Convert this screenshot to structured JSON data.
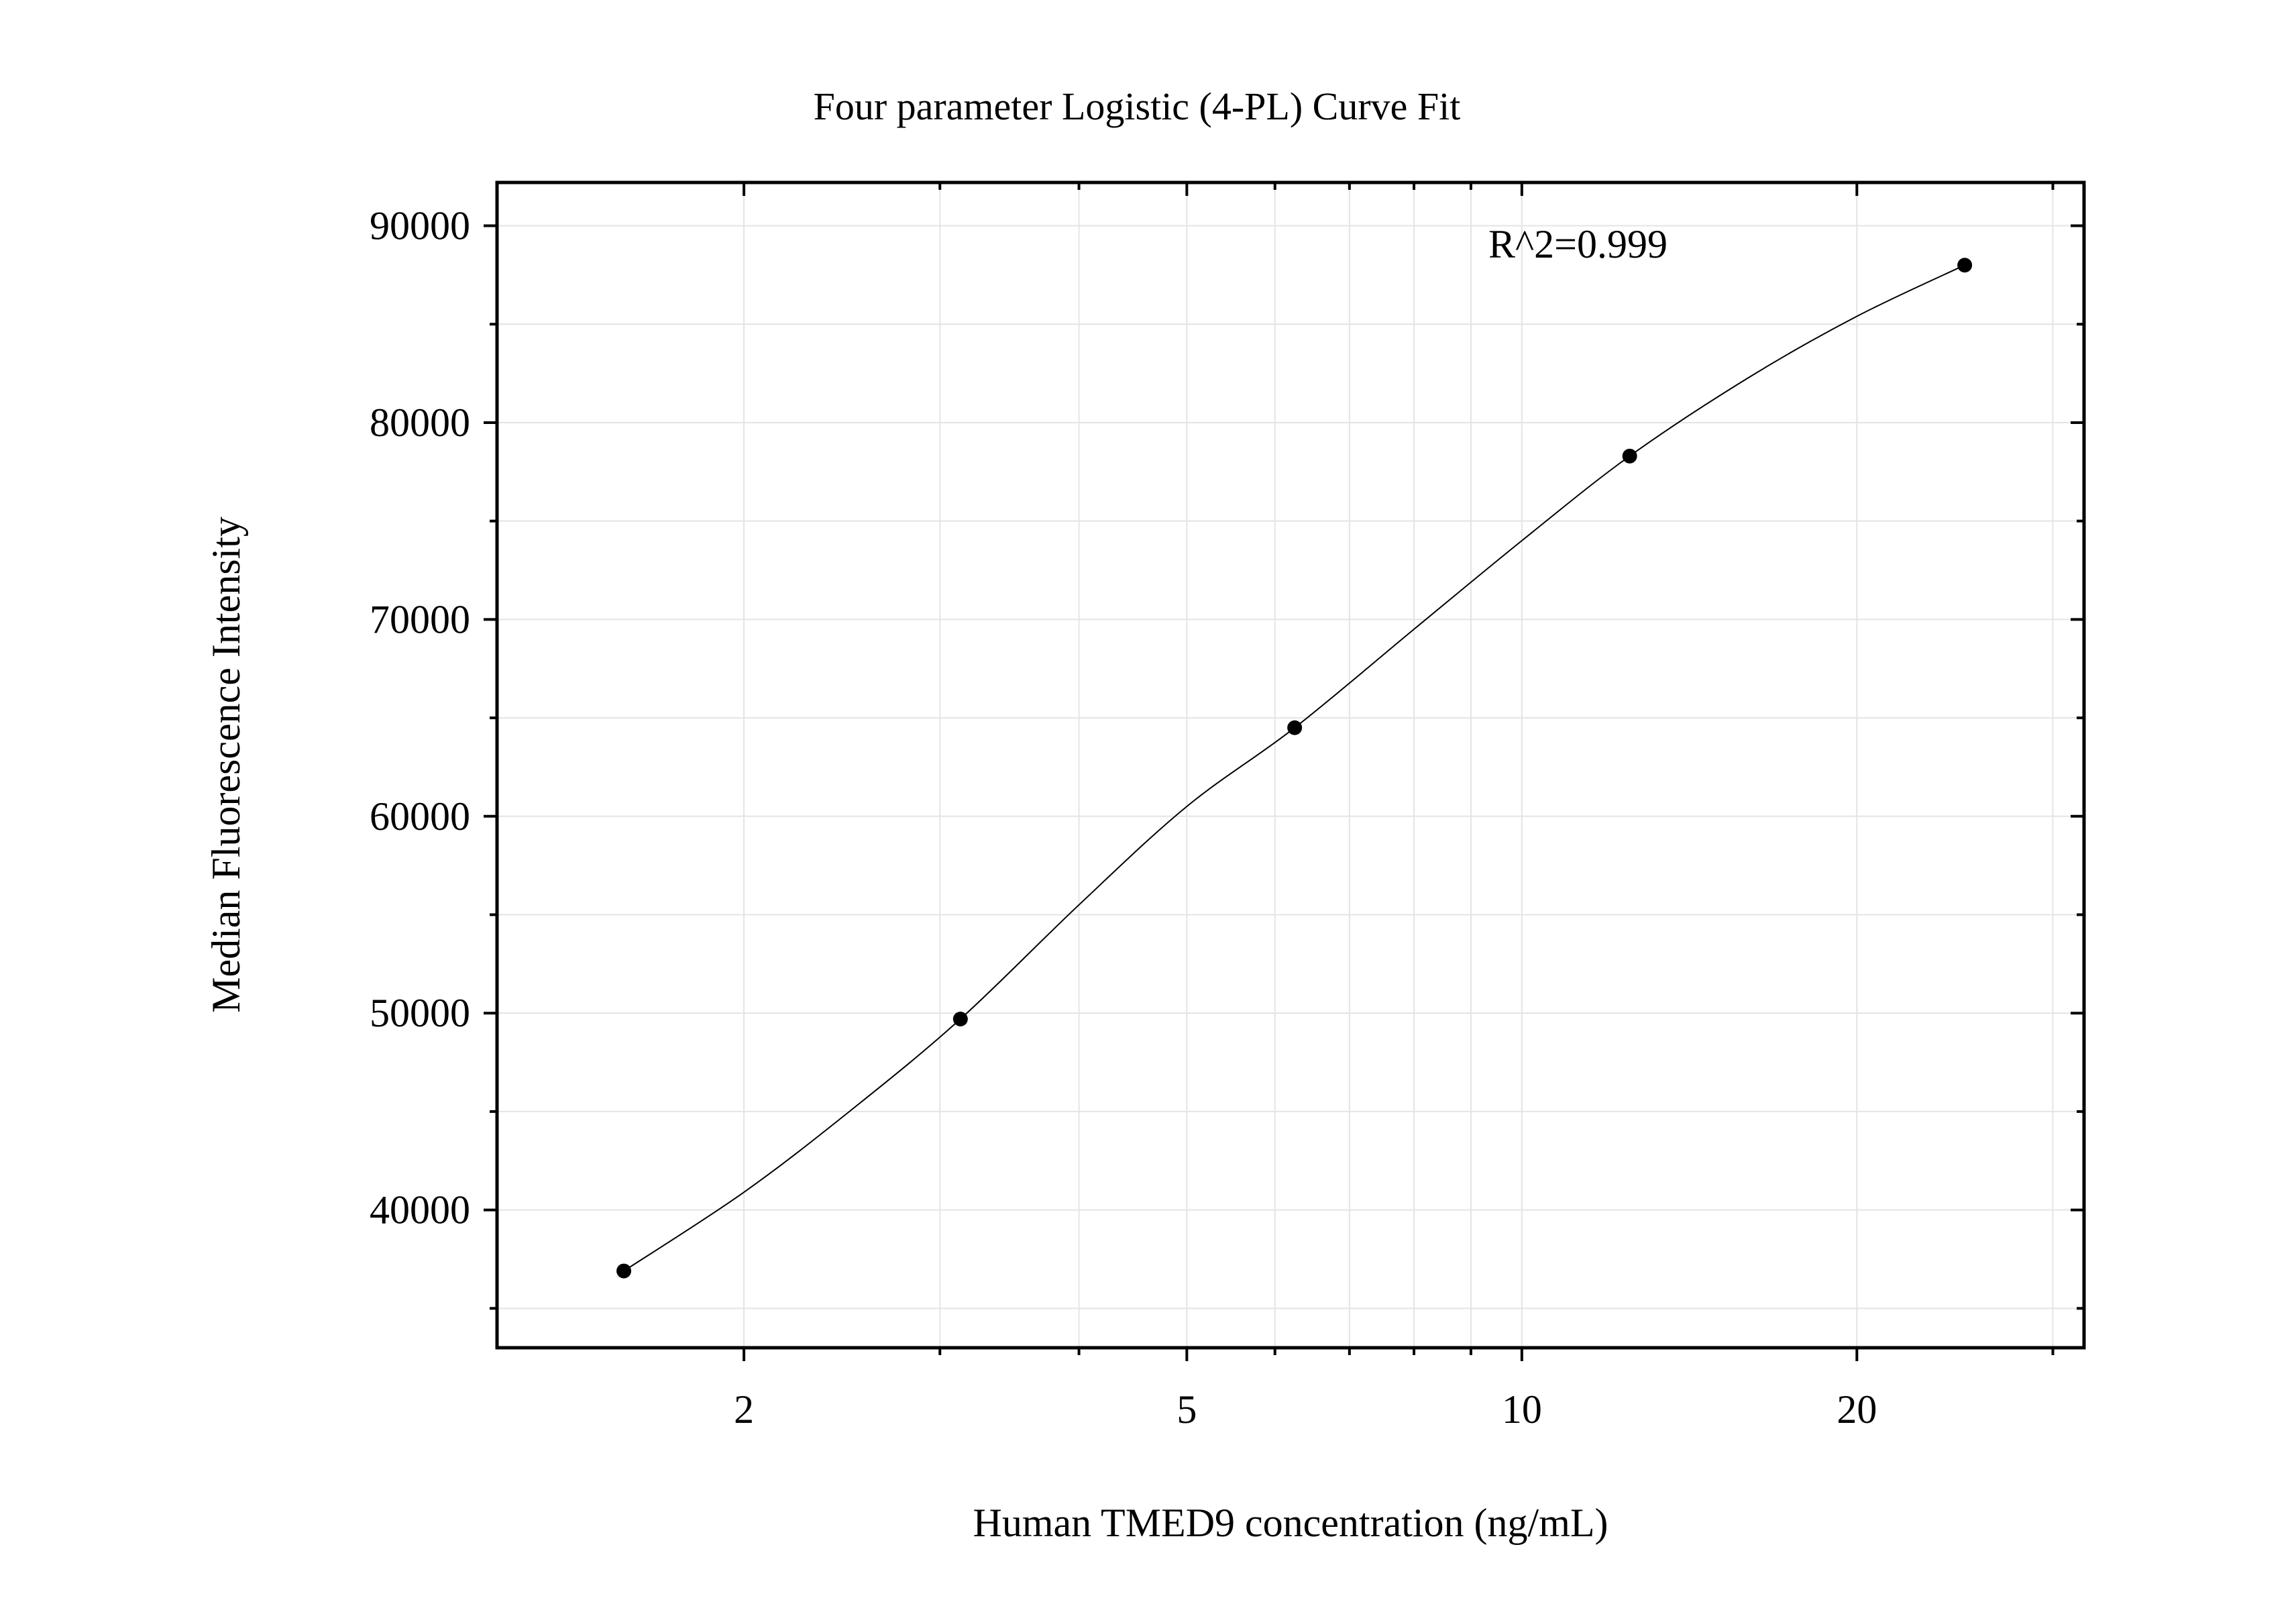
{
  "chart_data": {
    "type": "scatter",
    "title": "Four parameter Logistic (4-PL) Curve Fit",
    "xlabel": "Human TMED9 concentration (ng/mL)",
    "ylabel": "Median Fluorescence Intensity",
    "x_scale": "log",
    "xlim": [
      1.2,
      32
    ],
    "ylim": [
      33000,
      92200
    ],
    "x_major_ticks": [
      2,
      5,
      10,
      20
    ],
    "x_tick_labels": [
      "2",
      "5",
      "10",
      "20"
    ],
    "x_minor_ticks": [
      3,
      4,
      6,
      7,
      8,
      9,
      30
    ],
    "y_major_ticks": [
      40000,
      50000,
      60000,
      70000,
      80000,
      90000
    ],
    "y_tick_labels": [
      "40000",
      "50000",
      "60000",
      "70000",
      "80000",
      "90000"
    ],
    "y_minor_ticks": [
      35000,
      45000,
      55000,
      65000,
      75000,
      85000
    ],
    "grid": true,
    "series": [
      {
        "type": "scatter",
        "x": [
          1.56,
          3.13,
          6.25,
          12.5,
          25
        ],
        "y": [
          36900,
          49700,
          64500,
          78300,
          88000
        ]
      }
    ],
    "fit_curve": {
      "model": "4PL",
      "x": [
        1.56,
        2.0,
        2.5,
        3.13,
        4.0,
        5.0,
        6.25,
        8.0,
        10.0,
        12.5,
        16.0,
        20.0,
        25.0
      ],
      "y": [
        36900,
        40900,
        45100,
        49700,
        55500,
        60500,
        64500,
        69500,
        74000,
        78300,
        82300,
        85400,
        88000
      ]
    },
    "annotations": [
      {
        "text": "R^2=0.999"
      }
    ],
    "colors": {
      "points": "#000000",
      "curve": "#000000",
      "grid": "#e4e4e4",
      "frame": "#000000"
    }
  }
}
